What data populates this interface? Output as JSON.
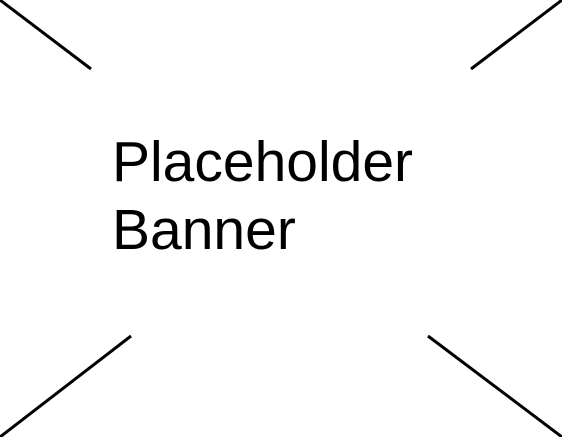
{
  "banner": {
    "line1": "Placeholder",
    "line2": "Banner",
    "text_color": "#000000",
    "background_color": "#ffffff",
    "line_color": "#000000",
    "icon": "placeholder-cross-icon"
  }
}
